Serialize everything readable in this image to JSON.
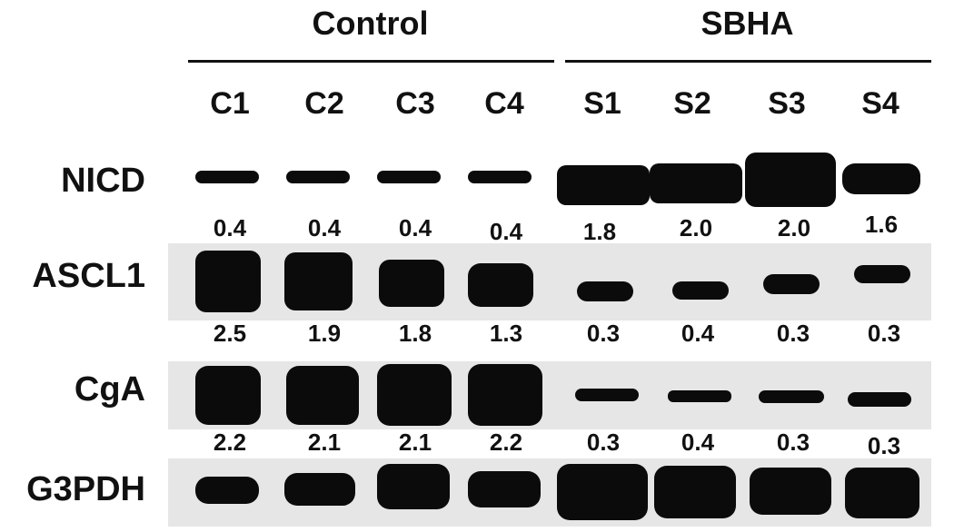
{
  "groups": [
    {
      "name": "Control"
    },
    {
      "name": "SBHA"
    }
  ],
  "lanes": [
    "C1",
    "C2",
    "C3",
    "C4",
    "S1",
    "S2",
    "S3",
    "S4"
  ],
  "blots": [
    {
      "name": "NICD",
      "values": [
        "0.4",
        "0.4",
        "0.4",
        "0.4",
        "1.8",
        "2.0",
        "2.0",
        "1.6"
      ]
    },
    {
      "name": "ASCL1",
      "values": [
        "2.5",
        "1.9",
        "1.8",
        "1.3",
        "0.3",
        "0.4",
        "0.3",
        "0.3"
      ]
    },
    {
      "name": "CgA",
      "values": [
        "2.2",
        "2.1",
        "2.1",
        "2.2",
        "0.3",
        "0.4",
        "0.3",
        "0.3"
      ]
    },
    {
      "name": "G3PDH",
      "values": []
    }
  ],
  "colors": {
    "band": "#0b0b0b",
    "strip_bg": "#e6e6e6",
    "text": "#111111"
  }
}
